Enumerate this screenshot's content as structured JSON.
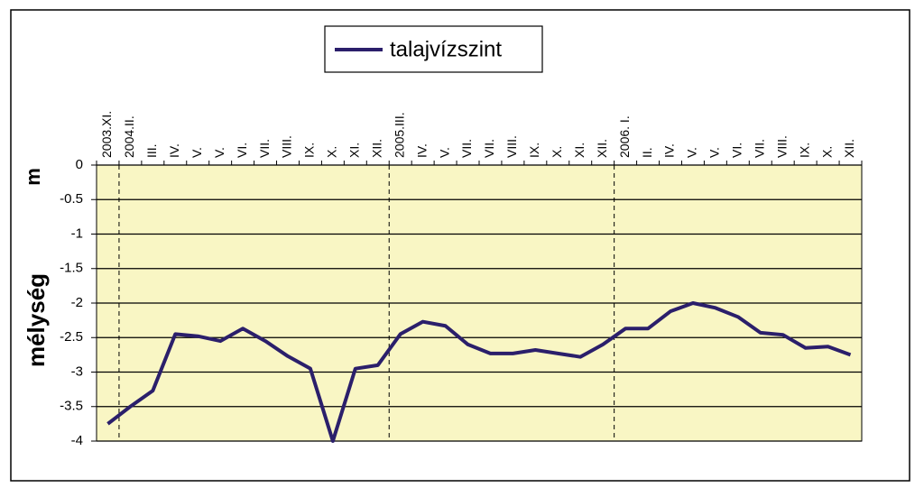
{
  "chart_data": {
    "type": "line",
    "ylabel": "mélység",
    "yunit": "m",
    "categories": [
      "2003.XI.",
      "2004.II.",
      "III.",
      "IV.",
      "V.",
      "V.",
      "VI.",
      "VII.",
      "VIII.",
      "IX.",
      "X.",
      "XI.",
      "XII.",
      "2005.III.",
      "IV.",
      "V.",
      "VII.",
      "VII.",
      "VIII.",
      "IX.",
      "X.",
      "XI.",
      "XII.",
      "2006. I.",
      "II.",
      "IV.",
      "V.",
      "V.",
      "VI.",
      "VII.",
      "VIII.",
      "IX.",
      "X.",
      "XII."
    ],
    "series": [
      {
        "name": "talajvízszint",
        "color": "#2b1f6b",
        "values": [
          -3.75,
          -3.5,
          -3.27,
          -2.45,
          -2.48,
          -2.55,
          -2.37,
          -2.55,
          -2.77,
          -2.95,
          -4.0,
          -2.95,
          -2.9,
          -2.45,
          -2.27,
          -2.33,
          -2.6,
          -2.73,
          -2.73,
          -2.68,
          -2.73,
          -2.78,
          -2.6,
          -2.37,
          -2.37,
          -2.12,
          -2.0,
          -2.07,
          -2.2,
          -2.43,
          -2.46,
          -2.65,
          -2.63,
          -2.75
        ]
      }
    ],
    "ylim": [
      -4,
      0
    ],
    "yticks": [
      0,
      -0.5,
      -1,
      -1.5,
      -2,
      -2.5,
      -3,
      -3.5,
      -4
    ],
    "grid": true,
    "plot_background": "#f9f6c4",
    "legend": "top"
  }
}
